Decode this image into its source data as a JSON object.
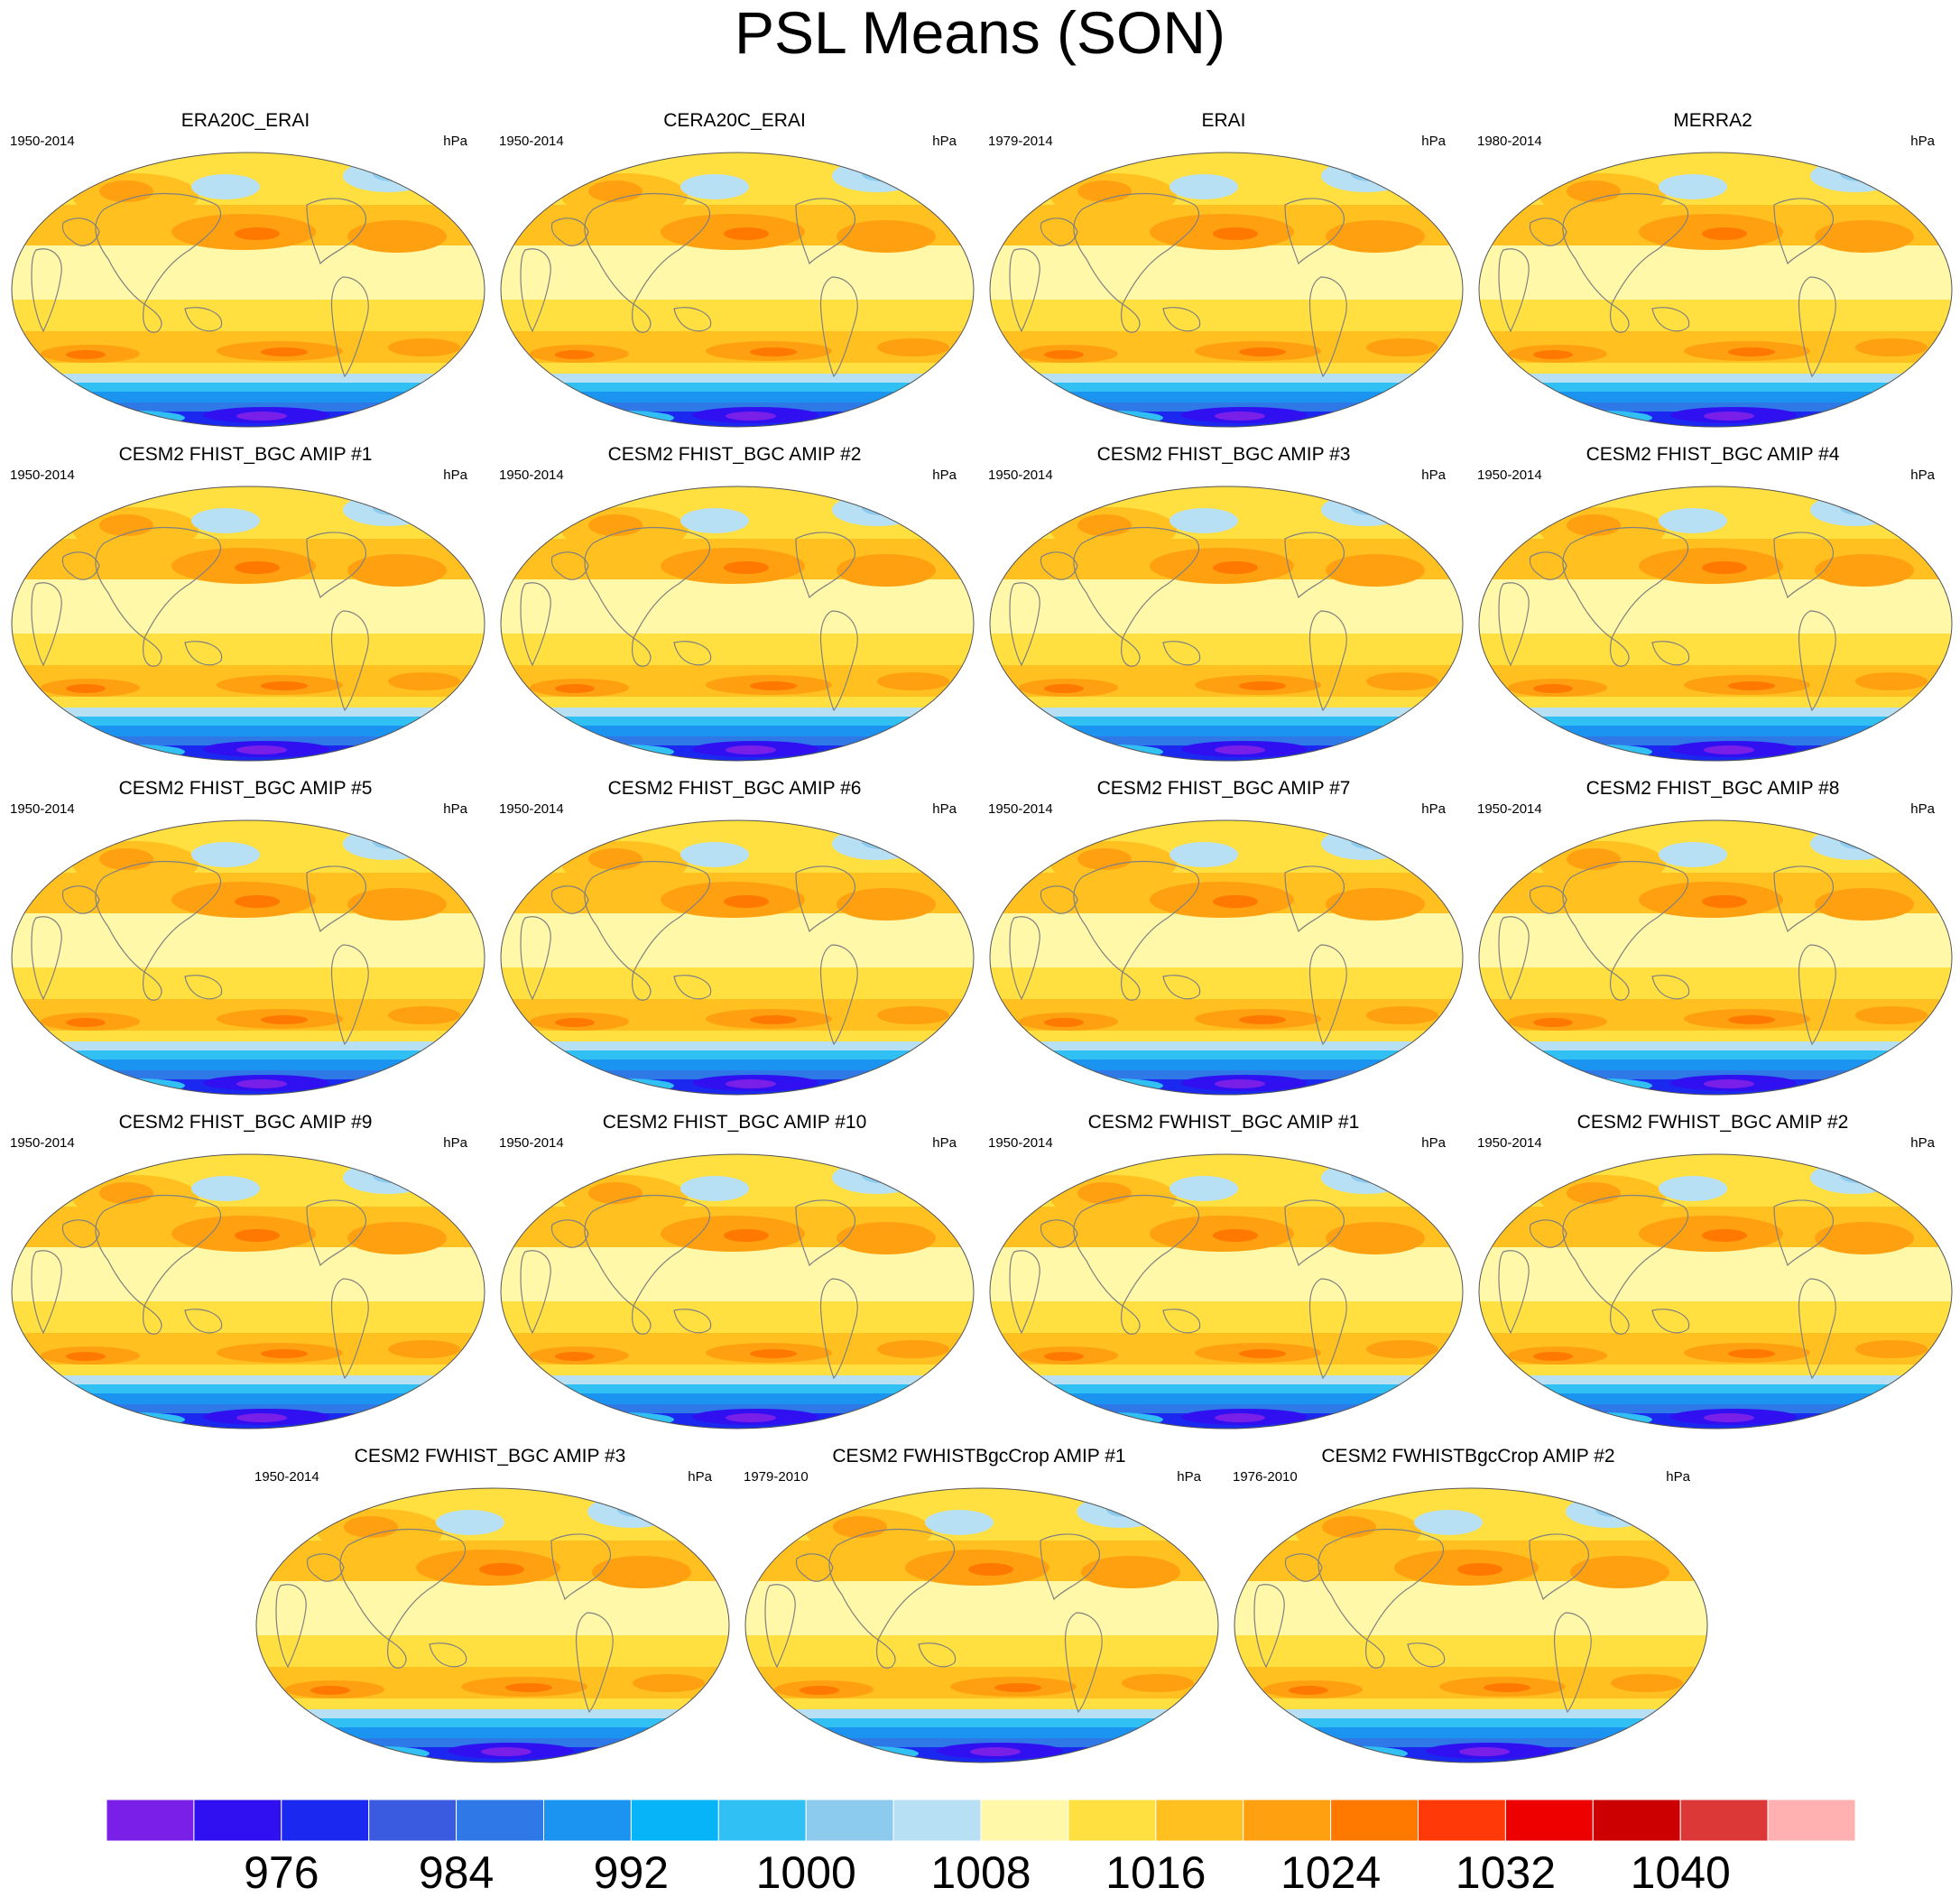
{
  "title": "PSL Means (SON)",
  "colorbar": {
    "tick_labels": [
      "976",
      "984",
      "992",
      "1000",
      "1008",
      "1016",
      "1024",
      "1032",
      "1040"
    ],
    "colors": [
      "#7a1fe8",
      "#3010f0",
      "#1a28f0",
      "#3a5ae0",
      "#2e78e8",
      "#1a94f0",
      "#08b4f8",
      "#30c0f4",
      "#8ccaee",
      "#b8e0f4",
      "#fff8a8",
      "#ffe040",
      "#ffc020",
      "#ffa010",
      "#ff7800",
      "#ff3a08",
      "#ee0000",
      "#cc0000",
      "#dd3838",
      "#ffb0b0"
    ]
  },
  "chart_data": {
    "type": "heatmap",
    "title": "PSL Means (SON)",
    "units": "hPa",
    "colorbar_ticks": [
      976,
      984,
      992,
      1000,
      1008,
      1016,
      1024,
      1032,
      1040
    ],
    "panels": [
      {
        "title": "ERA20C_ERAI",
        "period": "1950-2014",
        "units": "hPa"
      },
      {
        "title": "CERA20C_ERAI",
        "period": "1950-2014",
        "units": "hPa"
      },
      {
        "title": "ERAI",
        "period": "1979-2014",
        "units": "hPa"
      },
      {
        "title": "MERRA2",
        "period": "1980-2014",
        "units": "hPa"
      },
      {
        "title": "CESM2 FHIST_BGC AMIP #1",
        "period": "1950-2014",
        "units": "hPa"
      },
      {
        "title": "CESM2 FHIST_BGC AMIP #2",
        "period": "1950-2014",
        "units": "hPa"
      },
      {
        "title": "CESM2 FHIST_BGC AMIP #3",
        "period": "1950-2014",
        "units": "hPa"
      },
      {
        "title": "CESM2 FHIST_BGC AMIP #4",
        "period": "1950-2014",
        "units": "hPa"
      },
      {
        "title": "CESM2 FHIST_BGC AMIP #5",
        "period": "1950-2014",
        "units": "hPa"
      },
      {
        "title": "CESM2 FHIST_BGC AMIP #6",
        "period": "1950-2014",
        "units": "hPa"
      },
      {
        "title": "CESM2 FHIST_BGC AMIP #7",
        "period": "1950-2014",
        "units": "hPa"
      },
      {
        "title": "CESM2 FHIST_BGC AMIP #8",
        "period": "1950-2014",
        "units": "hPa"
      },
      {
        "title": "CESM2 FHIST_BGC AMIP #9",
        "period": "1950-2014",
        "units": "hPa"
      },
      {
        "title": "CESM2 FHIST_BGC AMIP #10",
        "period": "1950-2014",
        "units": "hPa"
      },
      {
        "title": "CESM2 FWHIST_BGC AMIP #1",
        "period": "1950-2014",
        "units": "hPa"
      },
      {
        "title": "CESM2 FWHIST_BGC AMIP #2",
        "period": "1950-2014",
        "units": "hPa"
      },
      {
        "title": "CESM2 FWHIST_BGC AMIP #3",
        "period": "1950-2014",
        "units": "hPa"
      },
      {
        "title": "CESM2 FWHISTBgcCrop AMIP #1",
        "period": "1979-2010",
        "units": "hPa"
      },
      {
        "title": "CESM2 FWHISTBgcCrop AMIP #2",
        "period": "1976-2010",
        "units": "hPa"
      }
    ]
  }
}
